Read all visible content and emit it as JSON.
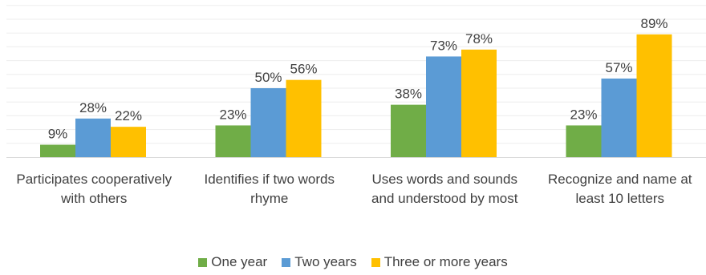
{
  "chart_data": {
    "type": "bar",
    "categories": [
      "Participates cooperatively with others",
      "Identifies if two words rhyme",
      "Uses words and sounds and understood by most",
      "Recognize and name at least 10 letters"
    ],
    "series": [
      {
        "name": "One year",
        "values": [
          9,
          23,
          38,
          23
        ],
        "labels": [
          "9%",
          "23%",
          "38%",
          "23%"
        ],
        "color": "#70ad47"
      },
      {
        "name": "Two years",
        "values": [
          28,
          50,
          73,
          57
        ],
        "labels": [
          "28%",
          "50%",
          "73%",
          "57%"
        ],
        "color": "#5b9bd5"
      },
      {
        "name": "Three or more years",
        "values": [
          22,
          56,
          78,
          89
        ],
        "labels": [
          "22%",
          "56%",
          "78%",
          "89%"
        ],
        "color": "#ffc000"
      }
    ],
    "ylim": [
      0,
      100
    ],
    "grid": true,
    "legend": "bottom"
  }
}
